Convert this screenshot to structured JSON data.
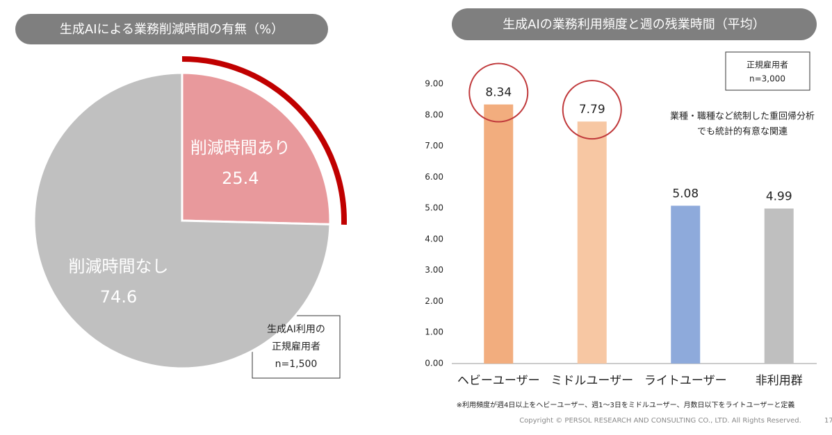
{
  "chart_data": [
    {
      "type": "pie",
      "title": "生成AIによる業務削減時間の有無（%）",
      "categories": [
        "削減時間あり",
        "削減時間なし"
      ],
      "values": [
        25.4,
        74.6
      ],
      "colors": [
        "#e8999c",
        "#c0c0c0"
      ],
      "highlight": [
        true,
        false
      ],
      "note": [
        "生成AI利用の",
        "正規雇用者",
        "n=1,500"
      ]
    },
    {
      "type": "bar",
      "title": "生成AIの業務利用頻度と週の残業時間（平均）",
      "categories": [
        "ヘビーユーザー",
        "ミドルユーザー",
        "ライトユーザー",
        "非利用群"
      ],
      "values": [
        8.34,
        7.79,
        5.08,
        4.99
      ],
      "colors": [
        "#f2ad7e",
        "#f7c7a3",
        "#8eaadb",
        "#bfbfbf"
      ],
      "highlight": [
        true,
        true,
        false,
        false
      ],
      "ylim": [
        0,
        9
      ],
      "yticks": [
        {
          "value": 0,
          "label": "0.00"
        },
        {
          "value": 1,
          "label": "1.00"
        },
        {
          "value": 2,
          "label": "2.00"
        },
        {
          "value": 3,
          "label": "3.00"
        },
        {
          "value": 4,
          "label": "4.00"
        },
        {
          "value": 5,
          "label": "5.00"
        },
        {
          "value": 6,
          "label": "6.00"
        },
        {
          "value": 7,
          "label": "7.00"
        },
        {
          "value": 8,
          "label": "8.00"
        },
        {
          "value": 9,
          "label": "9.00"
        }
      ],
      "note": [
        "正規雇用者",
        "n=3,000"
      ],
      "annotation": [
        "業種・職種など統制した重回帰分析",
        "でも統計的有意な関連"
      ],
      "footnote": "※利用頻度が週4日以上をヘビーユーザー、週1～3日をミドルユーザー、月数日以下をライトユーザーと定義"
    }
  ],
  "copyright": "Copyright © PERSOL RESEARCH AND CONSULTING CO., LTD. All Rights Reserved.",
  "page_number": "17"
}
